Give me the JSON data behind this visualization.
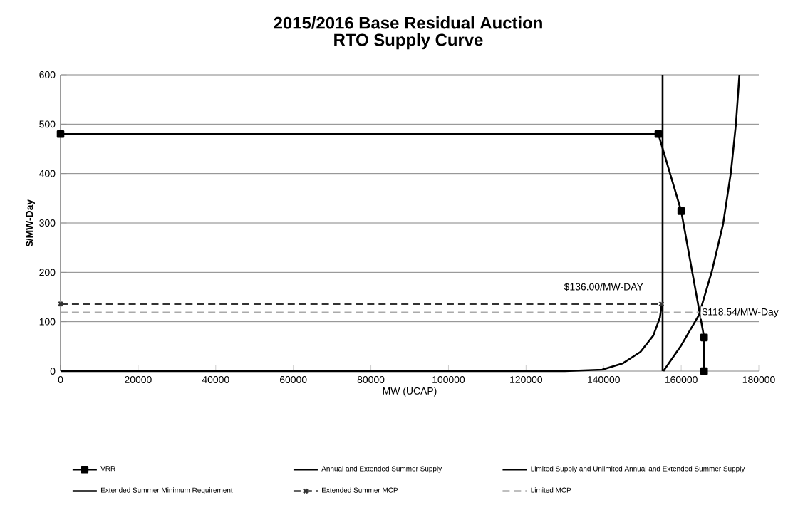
{
  "chart_data": {
    "type": "line",
    "title": "2015/2016 Base Residual Auction",
    "subtitle": "RTO Supply Curve",
    "xlabel": "MW (UCAP)",
    "ylabel": "$/MW-Day",
    "xlim": [
      0,
      180000
    ],
    "xticks": [
      0,
      20000,
      40000,
      60000,
      80000,
      100000,
      120000,
      140000,
      160000,
      180000
    ],
    "ylim": [
      0,
      600
    ],
    "yticks": [
      0,
      100,
      200,
      300,
      400,
      500,
      600
    ],
    "grid": "y",
    "legend": "bottom",
    "annotations": [
      {
        "text": "$136.00/MW-DAY",
        "x": 140000,
        "y": 136
      },
      {
        "text": "$118.54/MW-Day",
        "x": 164600,
        "y": 118.54
      }
    ],
    "series": [
      {
        "name": "VRR",
        "color": "#000000",
        "marker": "square",
        "line_style": "solid",
        "x": [
          0,
          154100,
          160000,
          165900,
          165900
        ],
        "values": [
          480,
          480,
          324,
          68,
          0
        ]
      },
      {
        "name": "Annual and Extended Summer Supply",
        "color": "#000000",
        "marker": "none",
        "line_style": "solid",
        "x": [
          0,
          130000,
          139600,
          145000,
          149500,
          152800,
          154500,
          155000
        ],
        "values": [
          0,
          0,
          3,
          16,
          39,
          72,
          108,
          136
        ]
      },
      {
        "name": "Limited Supply and Unlimited Annual and Extended Summer Supply",
        "color": "#000000",
        "marker": "none",
        "line_style": "solid",
        "x": [
          155400,
          160000,
          164600,
          167900,
          170800,
          172800,
          174100,
          175000
        ],
        "values": [
          0,
          52,
          114,
          202,
          298,
          402,
          500,
          600
        ]
      },
      {
        "name": "Extended Summer Minimum Requirement",
        "color": "#000000",
        "marker": "none",
        "line_style": "solid",
        "x": [
          155200,
          155200
        ],
        "values": [
          0,
          600
        ]
      },
      {
        "name": "Extended Summer MCP",
        "color": "#333333",
        "marker": "cross",
        "line_style": "dashed",
        "x": [
          0,
          154900
        ],
        "values": [
          136,
          136
        ]
      },
      {
        "name": "Limited MCP",
        "color": "#aaaaaa",
        "marker": "none",
        "line_style": "dashed",
        "x": [
          0,
          164600
        ],
        "values": [
          118.54,
          118.54
        ]
      }
    ]
  }
}
